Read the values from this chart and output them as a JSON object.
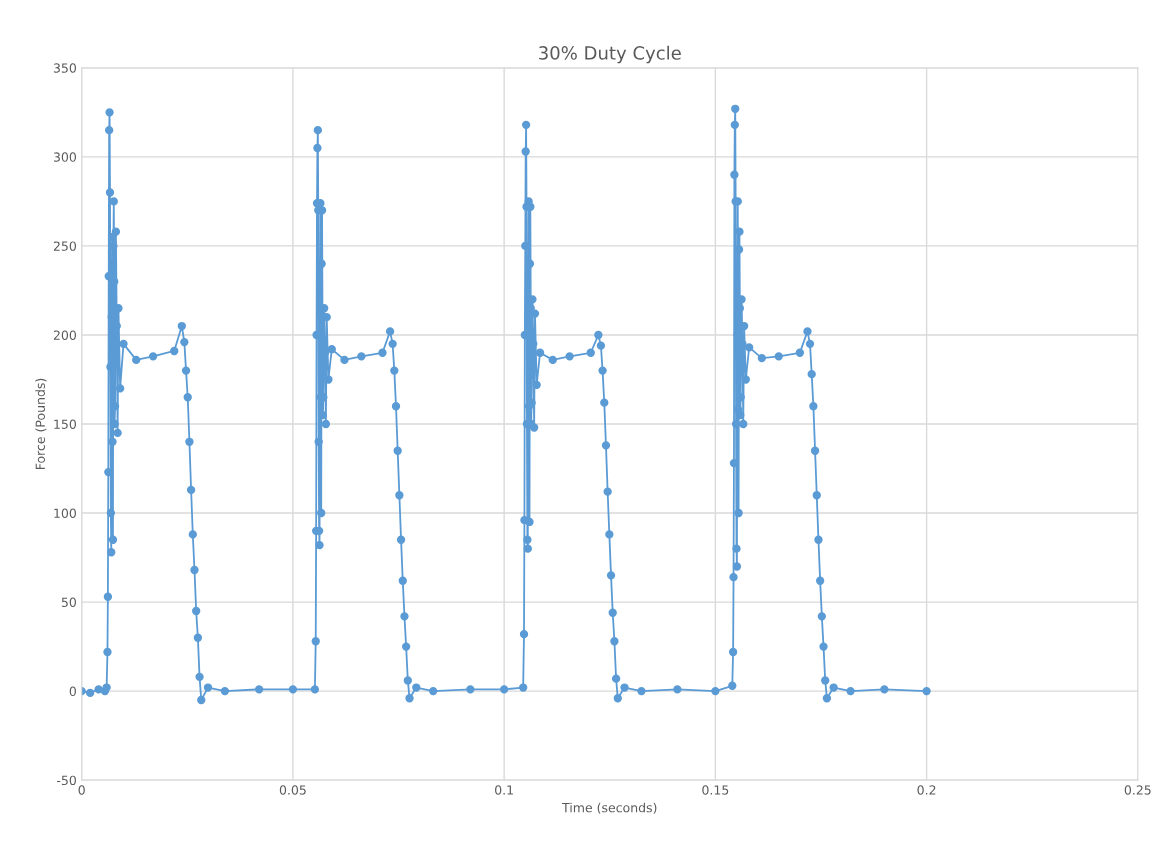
{
  "chart_data": {
    "type": "line",
    "title": "30% Duty Cycle",
    "xlabel": "Time (seconds)",
    "ylabel": "Force (Pounds)",
    "xlim": [
      0,
      0.25
    ],
    "xticks": [
      0,
      0.05,
      0.1,
      0.15,
      0.2,
      0.25
    ],
    "ylim": [
      -50,
      350
    ],
    "yticks": [
      -50,
      0,
      50,
      100,
      150,
      200,
      250,
      300,
      350
    ],
    "grid": true,
    "marker": "circle",
    "line_style": "solid",
    "series": [
      {
        "color": "#5b9bd5",
        "x": [
          0,
          0.002,
          0.004,
          0.0055,
          0.0059,
          0.0061,
          0.0062,
          0.0063,
          0.0064,
          0.0065,
          0.0066,
          0.0067,
          0.0068,
          0.0069,
          0.007,
          0.0071,
          0.0072,
          0.0073,
          0.0074,
          0.0075,
          0.0076,
          0.0077,
          0.0078,
          0.0079,
          0.0081,
          0.0083,
          0.0085,
          0.0087,
          0.0091,
          0.0099,
          0.0129,
          0.0169,
          0.0219,
          0.0237,
          0.0243,
          0.0247,
          0.0251,
          0.0255,
          0.0259,
          0.0263,
          0.0267,
          0.0271,
          0.0275,
          0.0279,
          0.0283,
          0.0299,
          0.0339,
          0.042,
          0.05,
          0.0552,
          0.0554,
          0.0555,
          0.0556,
          0.0557,
          0.0558,
          0.0559,
          0.056,
          0.0561,
          0.0562,
          0.0563,
          0.0564,
          0.0565,
          0.0566,
          0.0567,
          0.0568,
          0.0569,
          0.057,
          0.0571,
          0.0572,
          0.0574,
          0.0576,
          0.0578,
          0.058,
          0.0584,
          0.0592,
          0.0622,
          0.0662,
          0.0712,
          0.073,
          0.0736,
          0.074,
          0.0744,
          0.0748,
          0.0752,
          0.0756,
          0.076,
          0.0764,
          0.0768,
          0.0772,
          0.0776,
          0.0792,
          0.0832,
          0.092,
          0.1,
          0.1045,
          0.1047,
          0.1048,
          0.1049,
          0.105,
          0.1051,
          0.1052,
          0.1053,
          0.1054,
          0.1055,
          0.1056,
          0.1057,
          0.1058,
          0.1059,
          0.106,
          0.1061,
          0.1062,
          0.1063,
          0.1064,
          0.1065,
          0.1067,
          0.1069,
          0.1071,
          0.1073,
          0.1077,
          0.1085,
          0.1115,
          0.1155,
          0.1205,
          0.1223,
          0.1229,
          0.1233,
          0.1237,
          0.1241,
          0.1245,
          0.1249,
          0.1253,
          0.1257,
          0.1261,
          0.1265,
          0.1269,
          0.1285,
          0.1325,
          0.141,
          0.15,
          0.154,
          0.1542,
          0.1543,
          0.1544,
          0.1545,
          0.1546,
          0.1547,
          0.1548,
          0.1549,
          0.155,
          0.1551,
          0.1552,
          0.1553,
          0.1554,
          0.1555,
          0.1556,
          0.1557,
          0.1558,
          0.1559,
          0.156,
          0.1562,
          0.1564,
          0.1566,
          0.1568,
          0.1572,
          0.158,
          0.161,
          0.165,
          0.17,
          0.1718,
          0.1724,
          0.1728,
          0.1732,
          0.1736,
          0.174,
          0.1744,
          0.1748,
          0.1752,
          0.1756,
          0.176,
          0.1764,
          0.178,
          0.182,
          0.19,
          0.2
        ],
        "values": [
          0,
          -1,
          1,
          0,
          2,
          22,
          53,
          123,
          233,
          315,
          325,
          280,
          182,
          100,
          78,
          210,
          255,
          140,
          85,
          250,
          275,
          230,
          150,
          160,
          258,
          205,
          145,
          215,
          170,
          195,
          186,
          188,
          191,
          205,
          196,
          180,
          165,
          140,
          113,
          88,
          68,
          45,
          30,
          8,
          -5,
          2,
          0,
          1,
          1,
          1,
          28,
          90,
          200,
          274,
          305,
          315,
          270,
          140,
          90,
          82,
          200,
          274,
          165,
          100,
          240,
          270,
          210,
          155,
          165,
          215,
          190,
          150,
          210,
          175,
          192,
          186,
          188,
          190,
          202,
          195,
          180,
          160,
          135,
          110,
          85,
          62,
          42,
          25,
          6,
          -4,
          2,
          0,
          1,
          1,
          2,
          32,
          96,
          200,
          250,
          303,
          318,
          272,
          150,
          85,
          80,
          205,
          275,
          160,
          95,
          240,
          272,
          215,
          150,
          162,
          220,
          195,
          148,
          212,
          172,
          190,
          186,
          188,
          190,
          200,
          194,
          180,
          162,
          138,
          112,
          88,
          65,
          44,
          28,
          7,
          -4,
          2,
          0,
          1,
          0,
          3,
          22,
          64,
          128,
          290,
          318,
          327,
          275,
          150,
          80,
          70,
          200,
          275,
          158,
          100,
          248,
          258,
          215,
          155,
          165,
          220,
          195,
          150,
          205,
          175,
          193,
          187,
          188,
          190,
          202,
          195,
          178,
          160,
          135,
          110,
          85,
          62,
          42,
          25,
          6,
          -4,
          2,
          0,
          1,
          0
        ]
      }
    ]
  }
}
